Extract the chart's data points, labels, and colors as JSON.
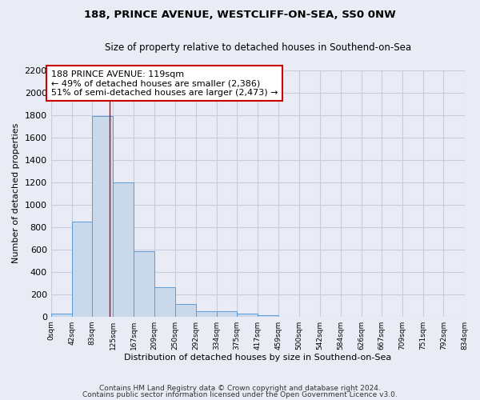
{
  "title1": "188, PRINCE AVENUE, WESTCLIFF-ON-SEA, SS0 0NW",
  "title2": "Size of property relative to detached houses in Southend-on-Sea",
  "xlabel": "Distribution of detached houses by size in Southend-on-Sea",
  "ylabel": "Number of detached properties",
  "bar_heights": [
    25,
    845,
    1790,
    1200,
    585,
    260,
    115,
    50,
    45,
    30,
    15,
    0,
    0,
    0,
    0,
    0,
    0,
    0,
    0,
    0
  ],
  "bin_edges": [
    0,
    42,
    83,
    125,
    167,
    209,
    250,
    292,
    334,
    375,
    417,
    459,
    500,
    542,
    584,
    626,
    667,
    709,
    751,
    792,
    834
  ],
  "tick_labels": [
    "0sqm",
    "42sqm",
    "83sqm",
    "125sqm",
    "167sqm",
    "209sqm",
    "250sqm",
    "292sqm",
    "334sqm",
    "375sqm",
    "417sqm",
    "459sqm",
    "500sqm",
    "542sqm",
    "584sqm",
    "626sqm",
    "667sqm",
    "709sqm",
    "751sqm",
    "792sqm",
    "834sqm"
  ],
  "bar_color": "#c9d9eb",
  "bar_edge_color": "#5b9bd5",
  "grid_color": "#c8cce0",
  "property_line_x": 119,
  "annotation_line1": "188 PRINCE AVENUE: 119sqm",
  "annotation_line2": "← 49% of detached houses are smaller (2,386)",
  "annotation_line3": "51% of semi-detached houses are larger (2,473) →",
  "annotation_box_color": "white",
  "annotation_box_edge_color": "#cc0000",
  "vline_color": "#cc0000",
  "ylim": [
    0,
    2200
  ],
  "yticks": [
    0,
    200,
    400,
    600,
    800,
    1000,
    1200,
    1400,
    1600,
    1800,
    2000,
    2200
  ],
  "footer1": "Contains HM Land Registry data © Crown copyright and database right 2024.",
  "footer2": "Contains public sector information licensed under the Open Government Licence v3.0.",
  "bg_color": "#eaecf5"
}
